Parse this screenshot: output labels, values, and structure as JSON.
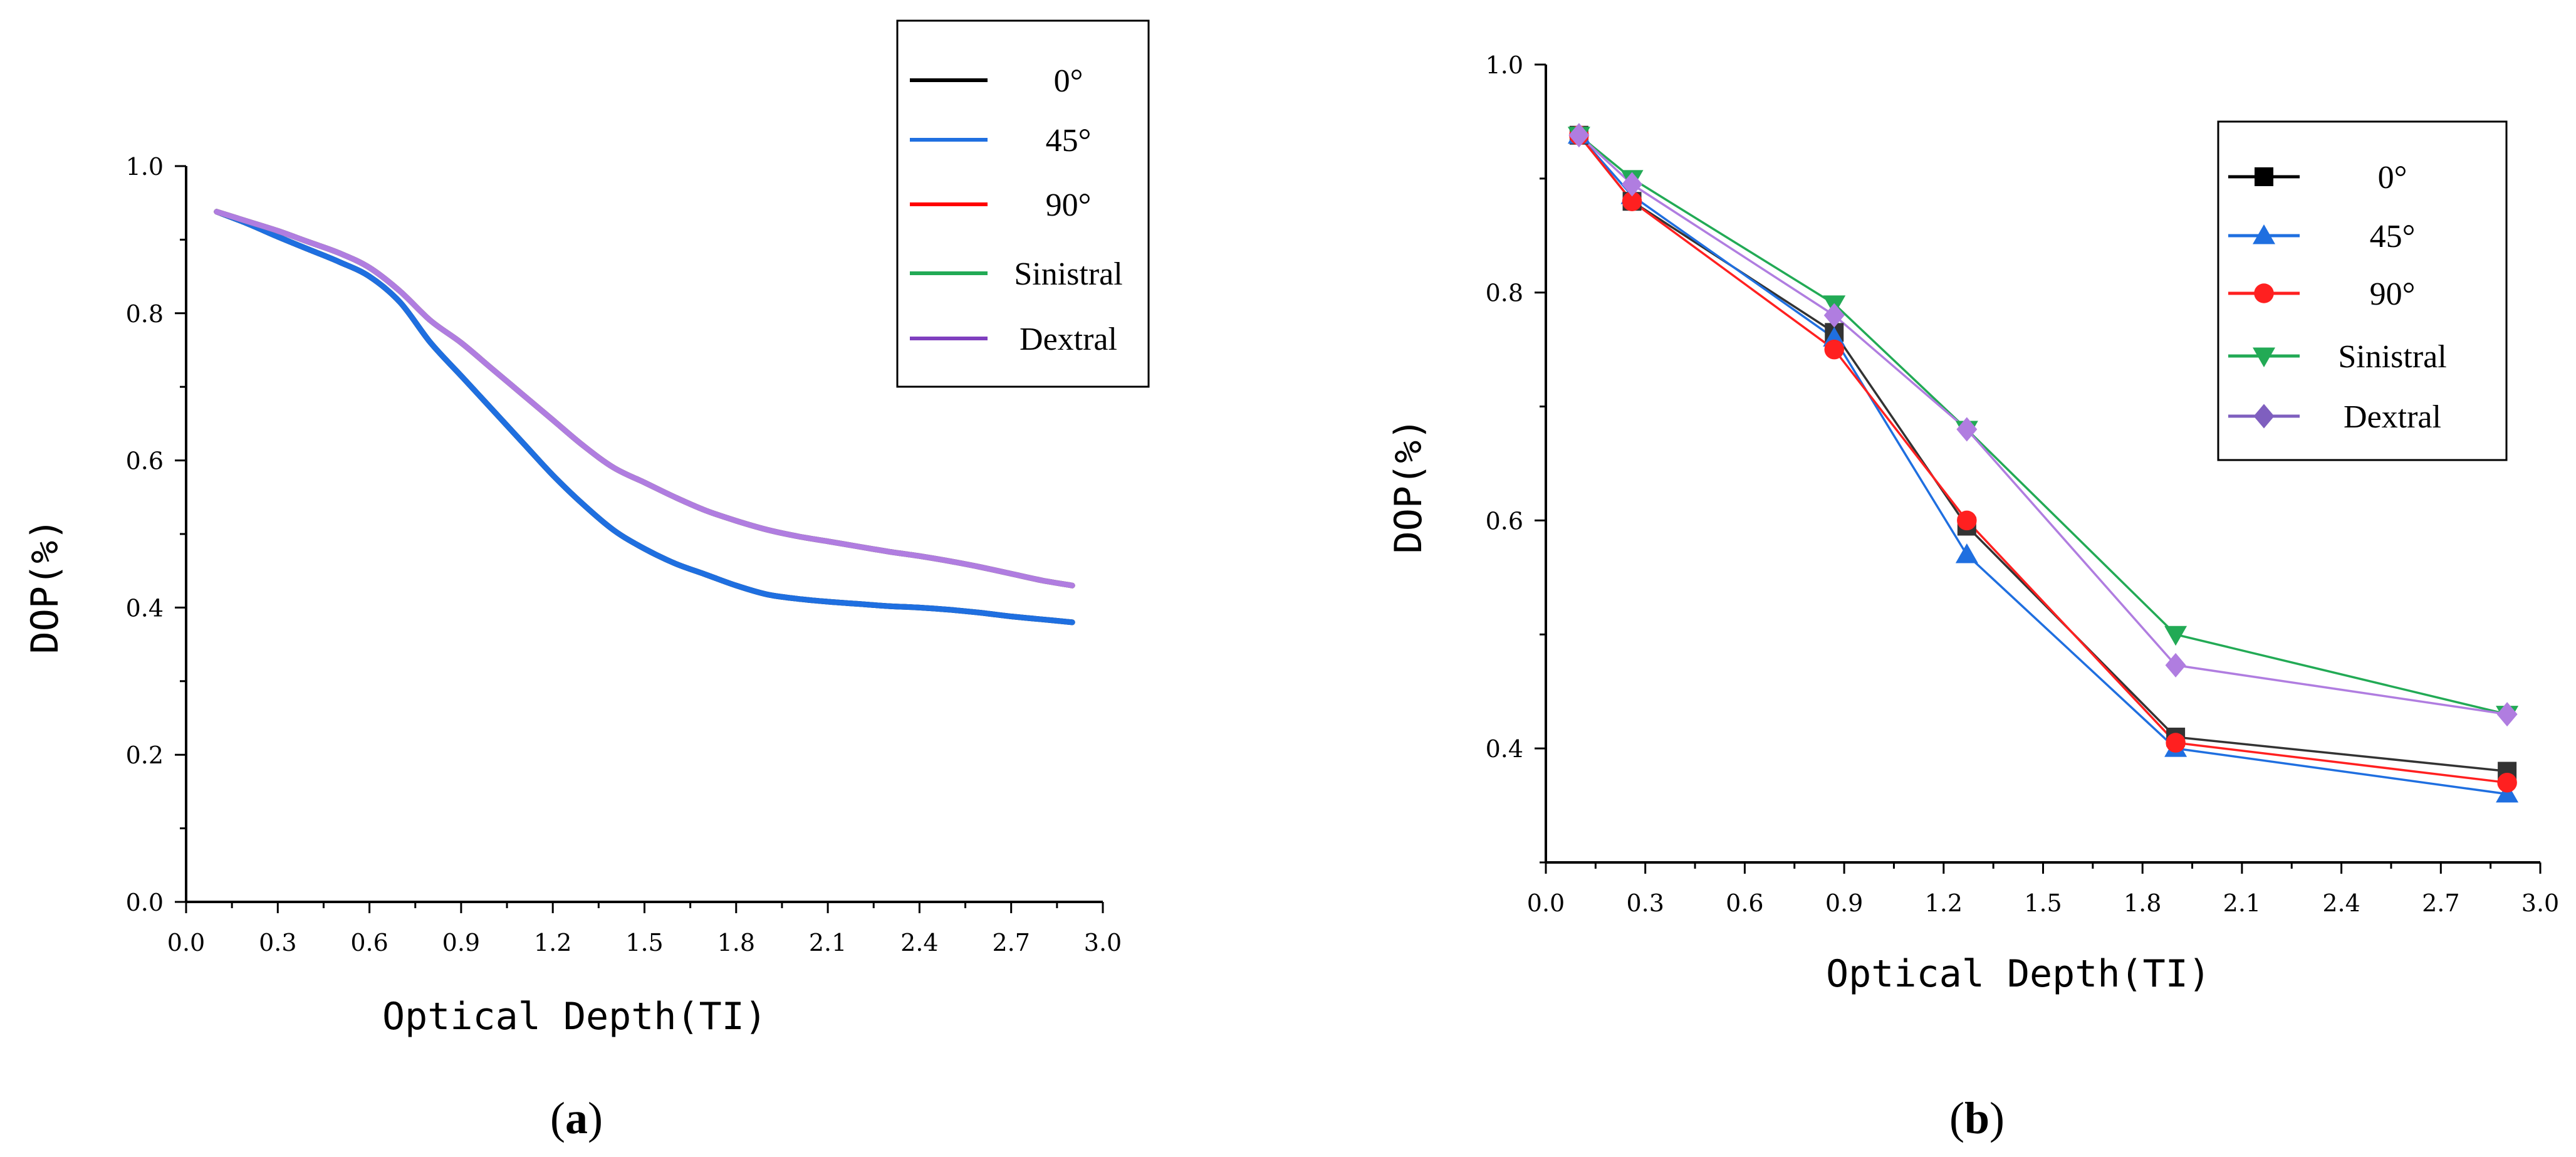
{
  "chart_data": [
    {
      "type": "line",
      "panel_label": "a",
      "xlabel": "Optical Depth(TI)",
      "ylabel": "DOP(%)",
      "xlim": [
        0.0,
        3.0
      ],
      "ylim": [
        0.0,
        1.0
      ],
      "xticks": [
        "0.0",
        "0.3",
        "0.6",
        "0.9",
        "1.2",
        "1.5",
        "1.8",
        "2.1",
        "2.4",
        "2.7",
        "3.0"
      ],
      "yticks": [
        "0.0",
        "0.2",
        "0.4",
        "0.6",
        "0.8",
        "1.0"
      ],
      "legend_position": "top-right",
      "x": [
        0.1,
        0.2,
        0.3,
        0.4,
        0.5,
        0.6,
        0.7,
        0.8,
        0.9,
        1.0,
        1.1,
        1.2,
        1.3,
        1.4,
        1.5,
        1.6,
        1.7,
        1.8,
        1.9,
        2.0,
        2.1,
        2.2,
        2.3,
        2.4,
        2.5,
        2.6,
        2.7,
        2.8,
        2.9
      ],
      "series": [
        {
          "name": "0°",
          "color": "#000000",
          "values": [
            0.938,
            0.922,
            0.904,
            0.887,
            0.87,
            0.85,
            0.815,
            0.76,
            0.715,
            0.67,
            0.625,
            0.58,
            0.54,
            0.505,
            0.48,
            0.46,
            0.445,
            0.43,
            0.418,
            0.412,
            0.408,
            0.405,
            0.402,
            0.4,
            0.397,
            0.393,
            0.388,
            0.384,
            0.38
          ]
        },
        {
          "name": "45°",
          "color": "#1f6fe0",
          "values": [
            0.938,
            0.922,
            0.904,
            0.887,
            0.87,
            0.85,
            0.815,
            0.76,
            0.715,
            0.67,
            0.625,
            0.58,
            0.54,
            0.505,
            0.48,
            0.46,
            0.445,
            0.43,
            0.418,
            0.412,
            0.408,
            0.405,
            0.402,
            0.4,
            0.397,
            0.393,
            0.388,
            0.384,
            0.38
          ]
        },
        {
          "name": "90°",
          "color": "#ff0000",
          "values": [
            0.938,
            0.925,
            0.912,
            0.897,
            0.882,
            0.862,
            0.83,
            0.79,
            0.76,
            0.725,
            0.69,
            0.655,
            0.62,
            0.59,
            0.57,
            0.55,
            0.532,
            0.518,
            0.506,
            0.497,
            0.49,
            0.483,
            0.476,
            0.47,
            0.463,
            0.455,
            0.446,
            0.437,
            0.43
          ]
        },
        {
          "name": "Sinistral",
          "color": "#22aa55",
          "values": [
            0.938,
            0.925,
            0.912,
            0.897,
            0.882,
            0.862,
            0.83,
            0.79,
            0.76,
            0.725,
            0.69,
            0.655,
            0.62,
            0.59,
            0.57,
            0.55,
            0.532,
            0.518,
            0.506,
            0.497,
            0.49,
            0.483,
            0.476,
            0.47,
            0.463,
            0.455,
            0.446,
            0.437,
            0.43
          ]
        },
        {
          "name": "Dextral",
          "color": "#b07de0",
          "values": [
            0.938,
            0.925,
            0.912,
            0.897,
            0.882,
            0.862,
            0.83,
            0.79,
            0.76,
            0.725,
            0.69,
            0.655,
            0.62,
            0.59,
            0.57,
            0.55,
            0.532,
            0.518,
            0.506,
            0.497,
            0.49,
            0.483,
            0.476,
            0.47,
            0.463,
            0.455,
            0.446,
            0.437,
            0.43
          ]
        }
      ],
      "legend_colors": [
        "#000000",
        "#1f6fe0",
        "#ff0000",
        "#22aa55",
        "#7f3fbf"
      ]
    },
    {
      "type": "line",
      "panel_label": "b",
      "xlabel": "Optical Depth(TI)",
      "ylabel": "DOP(%)",
      "xlim": [
        0.0,
        3.0
      ],
      "ylim": [
        0.3,
        1.0
      ],
      "xticks": [
        "0.0",
        "0.3",
        "0.6",
        "0.9",
        "1.2",
        "1.5",
        "1.8",
        "2.1",
        "2.4",
        "2.7",
        "3.0"
      ],
      "yticks": [
        "0.4",
        "0.6",
        "0.8",
        "1.0"
      ],
      "legend_position": "top-right",
      "x": [
        0.1,
        0.26,
        0.87,
        1.27,
        1.9,
        2.9
      ],
      "series": [
        {
          "name": "0°",
          "color": "#333333",
          "marker": "square",
          "values": [
            0.938,
            0.88,
            0.765,
            0.595,
            0.41,
            0.38
          ]
        },
        {
          "name": "45°",
          "color": "#1f6fe0",
          "marker": "triangle-up",
          "values": [
            0.938,
            0.885,
            0.76,
            0.57,
            0.4,
            0.36
          ]
        },
        {
          "name": "90°",
          "color": "#ff2020",
          "marker": "circle",
          "values": [
            0.938,
            0.88,
            0.75,
            0.6,
            0.405,
            0.37
          ]
        },
        {
          "name": "Sinistral",
          "color": "#22aa55",
          "marker": "triangle-down",
          "values": [
            0.938,
            0.9,
            0.79,
            0.68,
            0.5,
            0.43
          ]
        },
        {
          "name": "Dextral",
          "color": "#b07de0",
          "marker": "diamond",
          "values": [
            0.938,
            0.895,
            0.78,
            0.68,
            0.473,
            0.43
          ]
        }
      ],
      "legend_colors": [
        "#000000",
        "#1f6fe0",
        "#ff2020",
        "#22aa55",
        "#7f5fbf"
      ]
    }
  ]
}
